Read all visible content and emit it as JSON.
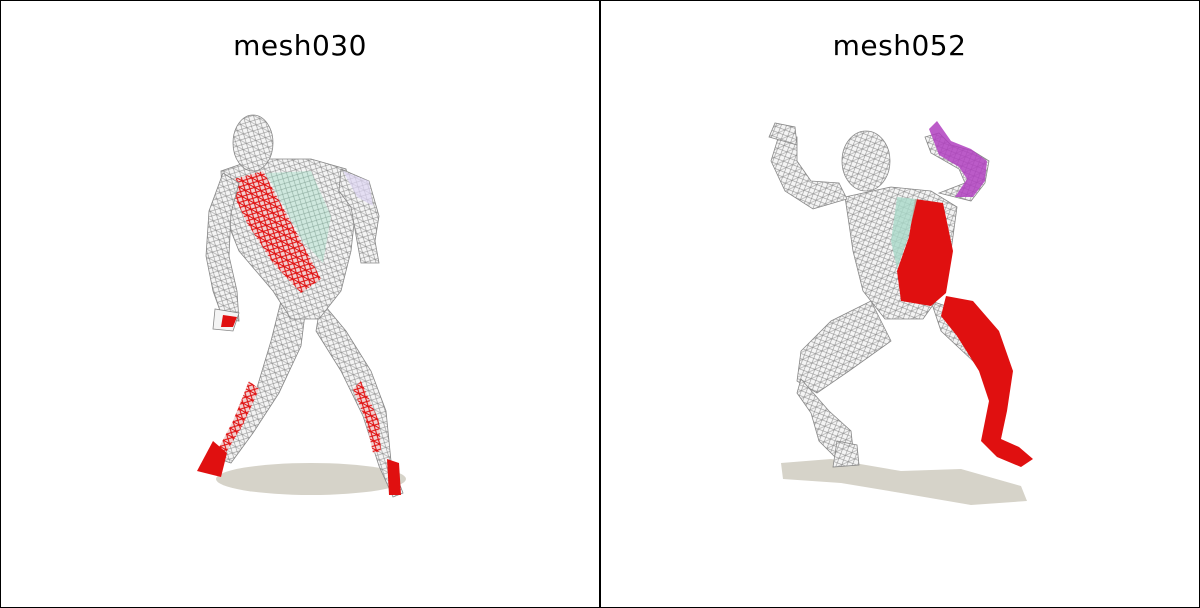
{
  "panels": [
    {
      "title": "mesh030"
    },
    {
      "title": "mesh052"
    }
  ],
  "colors": {
    "background": "#ffffff",
    "border": "#000000",
    "mesh_wire": "#9a9a9a",
    "mesh_fill": "#f2f2f2",
    "highlight_red": "#e01010",
    "highlight_teal": "#a8d8c8",
    "highlight_purple": "#b040c0",
    "shadow": "#d6d3c9"
  }
}
